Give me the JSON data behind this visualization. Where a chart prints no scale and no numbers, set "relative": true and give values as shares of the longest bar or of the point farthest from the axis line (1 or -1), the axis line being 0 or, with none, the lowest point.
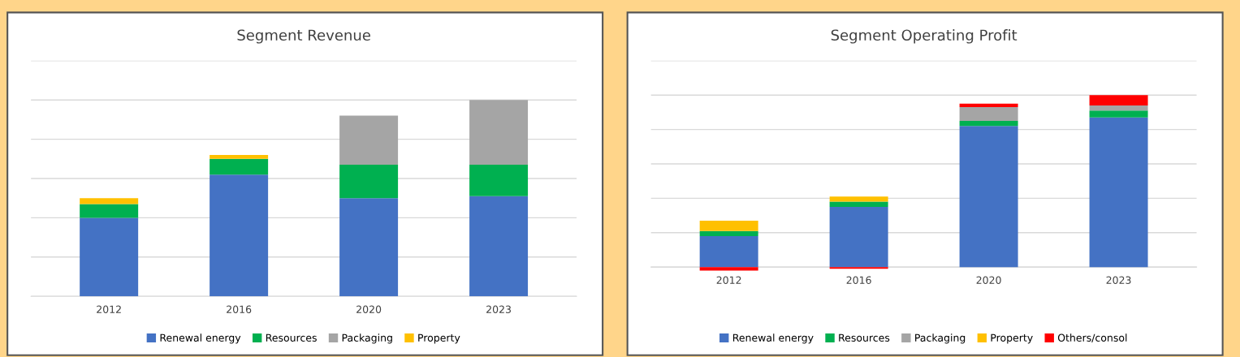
{
  "chart_data": [
    {
      "type": "bar",
      "title": "Segment Revenue",
      "categories": [
        "2012",
        "2016",
        "2020",
        "2023"
      ],
      "stacked": true,
      "relative": true,
      "grid": "y",
      "legend": "bottom",
      "series": [
        {
          "name": "Renewal energy",
          "color": "#4472c4",
          "values": [
            0.4,
            0.62,
            0.5,
            0.51
          ]
        },
        {
          "name": "Resources",
          "color": "#00b050",
          "values": [
            0.07,
            0.08,
            0.17,
            0.16
          ]
        },
        {
          "name": "Packaging",
          "color": "#a5a5a5",
          "values": [
            0,
            0,
            0.25,
            0.33
          ]
        },
        {
          "name": "Property",
          "color": "#ffc000",
          "values": [
            0.03,
            0.02,
            0,
            0
          ]
        }
      ]
    },
    {
      "type": "bar",
      "title": "Segment Operating Profit",
      "categories": [
        "2012",
        "2016",
        "2020",
        "2023"
      ],
      "stacked": true,
      "relative": true,
      "grid": "y",
      "legend": "bottom",
      "series": [
        {
          "name": "Renewal energy",
          "color": "#4472c4",
          "values": [
            0.18,
            0.35,
            0.82,
            0.87
          ]
        },
        {
          "name": "Resources",
          "color": "#00b050",
          "values": [
            0.03,
            0.03,
            0.03,
            0.04
          ]
        },
        {
          "name": "Packaging",
          "color": "#a5a5a5",
          "values": [
            0,
            0,
            0.08,
            0.03
          ]
        },
        {
          "name": "Property",
          "color": "#ffc000",
          "values": [
            0.06,
            0.03,
            0,
            0
          ]
        },
        {
          "name": "Others/consol",
          "color": "#ff0000",
          "values": [
            -0.02,
            -0.01,
            0.02,
            0.06
          ]
        }
      ]
    }
  ]
}
